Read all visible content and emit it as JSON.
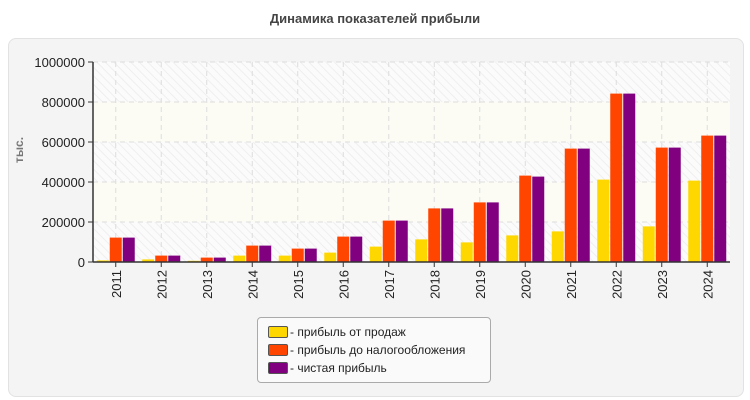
{
  "chart_data": {
    "type": "bar",
    "title": "Динамика показателей прибыли",
    "ylabel": "тыс.",
    "xlabel": "",
    "ylim": [
      0,
      1000000
    ],
    "yticks": [
      "0",
      "200000",
      "400000",
      "600000",
      "800000",
      "1000000"
    ],
    "grid": true,
    "legend_position": "bottom",
    "categories": [
      "2011",
      "2012",
      "2013",
      "2014",
      "2015",
      "2016",
      "2017",
      "2018",
      "2019",
      "2020",
      "2021",
      "2022",
      "2023",
      "2024"
    ],
    "series": [
      {
        "name": "- прибыль от продаж",
        "color": "#FFD700",
        "values": [
          8000,
          13000,
          6000,
          32000,
          32000,
          47000,
          77000,
          113000,
          98000,
          133000,
          153000,
          412000,
          178000,
          407000
        ]
      },
      {
        "name": "- прибыль до налогообложения",
        "color": "#FF4500",
        "values": [
          122000,
          32000,
          22000,
          82000,
          67000,
          127000,
          207000,
          268000,
          298000,
          432000,
          567000,
          842000,
          572000,
          632000
        ]
      },
      {
        "name": "- чистая прибыль",
        "color": "#800080",
        "values": [
          122000,
          32000,
          22000,
          82000,
          67000,
          127000,
          207000,
          268000,
          298000,
          427000,
          567000,
          842000,
          572000,
          632000
        ]
      }
    ]
  }
}
